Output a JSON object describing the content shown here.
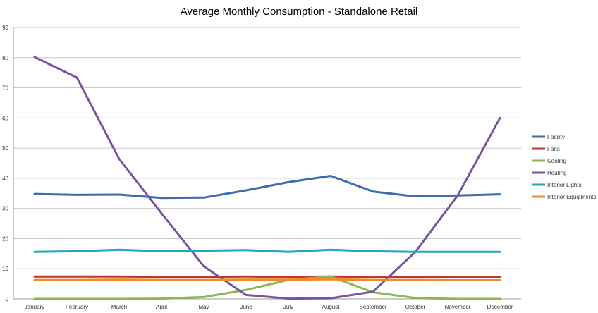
{
  "chart_data": {
    "type": "line",
    "title": "Average Monthly Consumption - Standalone Retail",
    "xlabel": "",
    "ylabel": "",
    "ylim": [
      0,
      90
    ],
    "yticks": [
      0,
      10,
      20,
      30,
      40,
      50,
      60,
      70,
      80,
      90
    ],
    "grid": true,
    "legend": "right",
    "categories": [
      "January",
      "February",
      "March",
      "April",
      "May",
      "June",
      "July",
      "August",
      "September",
      "October",
      "November",
      "December"
    ],
    "series": [
      {
        "name": "Facility",
        "color": "#3c6ea8",
        "values": [
          34.8,
          34.5,
          34.6,
          33.5,
          33.6,
          36.0,
          38.7,
          40.8,
          35.6,
          34.0,
          34.3,
          34.7
        ]
      },
      {
        "name": "Fans",
        "color": "#be3831",
        "values": [
          7.4,
          7.4,
          7.4,
          7.3,
          7.3,
          7.4,
          7.3,
          7.4,
          7.3,
          7.3,
          7.2,
          7.3
        ]
      },
      {
        "name": "Cooling",
        "color": "#8cb650",
        "values": [
          0.0,
          0.0,
          0.0,
          0.1,
          0.6,
          3.0,
          6.3,
          7.4,
          2.2,
          0.3,
          0.0,
          0.0
        ]
      },
      {
        "name": "Heating",
        "color": "#7a52a0",
        "values": [
          80.2,
          73.4,
          46.4,
          28.4,
          10.8,
          1.3,
          0.1,
          0.2,
          2.4,
          15.6,
          34.3,
          60.0
        ]
      },
      {
        "name": "Interior Lights",
        "color": "#27a4c1",
        "values": [
          15.6,
          15.8,
          16.3,
          15.8,
          16.0,
          16.2,
          15.6,
          16.3,
          15.8,
          15.6,
          15.6,
          15.6
        ]
      },
      {
        "name": "Interior Equipments",
        "color": "#f08a2e",
        "values": [
          6.3,
          6.3,
          6.4,
          6.3,
          6.3,
          6.4,
          6.4,
          6.5,
          6.3,
          6.3,
          6.2,
          6.2
        ]
      }
    ]
  }
}
